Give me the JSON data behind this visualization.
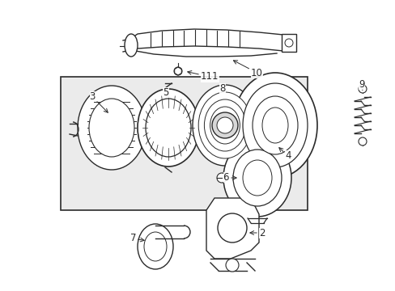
{
  "bg_color": "#ffffff",
  "line_color": "#2a2a2a",
  "box_fill": "#e8e8e8",
  "font_size": 8.5
}
